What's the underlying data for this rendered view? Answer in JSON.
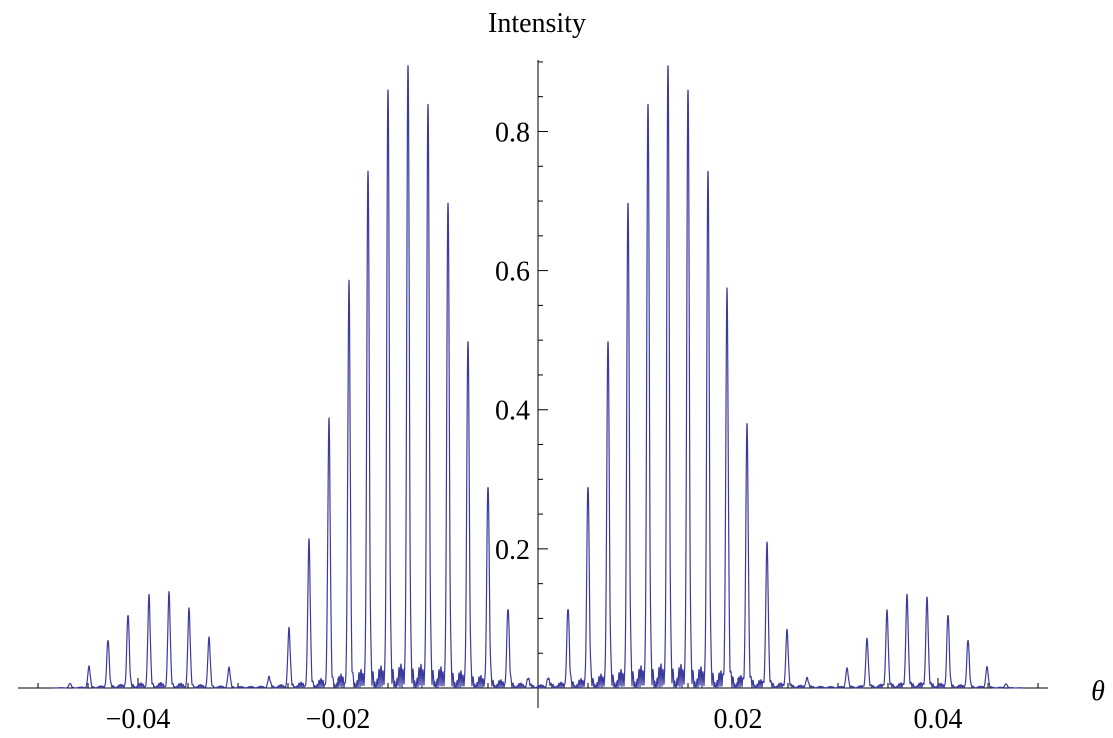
{
  "chart_data": {
    "type": "line",
    "title": "",
    "xlabel": "θ",
    "ylabel": "Intensity",
    "xlim": [
      -0.052,
      0.052
    ],
    "ylim": [
      0,
      0.92
    ],
    "grid": false,
    "x_ticks": [
      {
        "value": -0.04,
        "label": "−0.04"
      },
      {
        "value": -0.02,
        "label": "−0.02"
      },
      {
        "value": 0.02,
        "label": "0.02"
      },
      {
        "value": 0.04,
        "label": "0.04"
      }
    ],
    "y_ticks": [
      {
        "value": 0.2,
        "label": "0.2"
      },
      {
        "value": 0.4,
        "label": "0.4"
      },
      {
        "value": 0.6,
        "label": "0.6"
      },
      {
        "value": 0.8,
        "label": "0.8"
      }
    ],
    "series": [
      {
        "color": "#3b3b9e",
        "peaks": [
          {
            "x": -0.0468,
            "y": 0.006
          },
          {
            "x": -0.0449,
            "y": 0.03
          },
          {
            "x": -0.043,
            "y": 0.068
          },
          {
            "x": -0.041,
            "y": 0.104
          },
          {
            "x": -0.0389,
            "y": 0.128
          },
          {
            "x": -0.0369,
            "y": 0.132
          },
          {
            "x": -0.0349,
            "y": 0.11
          },
          {
            "x": -0.0329,
            "y": 0.07
          },
          {
            "x": -0.0309,
            "y": 0.028
          },
          {
            "x": -0.0269,
            "y": 0.014
          },
          {
            "x": -0.0249,
            "y": 0.082
          },
          {
            "x": -0.0229,
            "y": 0.206
          },
          {
            "x": -0.0209,
            "y": 0.375
          },
          {
            "x": -0.0189,
            "y": 0.567
          },
          {
            "x": -0.017,
            "y": 0.742
          },
          {
            "x": -0.015,
            "y": 0.859
          },
          {
            "x": -0.013,
            "y": 0.894
          },
          {
            "x": -0.011,
            "y": 0.838
          },
          {
            "x": -0.009,
            "y": 0.696
          },
          {
            "x": -0.007,
            "y": 0.497
          },
          {
            "x": -0.005,
            "y": 0.288
          },
          {
            "x": -0.003,
            "y": 0.112
          },
          {
            "x": -0.001,
            "y": 0.012
          },
          {
            "x": 0.001,
            "y": 0.012
          },
          {
            "x": 0.003,
            "y": 0.112
          },
          {
            "x": 0.005,
            "y": 0.288
          },
          {
            "x": 0.007,
            "y": 0.497
          },
          {
            "x": 0.009,
            "y": 0.696
          },
          {
            "x": 0.011,
            "y": 0.838
          },
          {
            "x": 0.013,
            "y": 0.894
          },
          {
            "x": 0.015,
            "y": 0.859
          },
          {
            "x": 0.017,
            "y": 0.742
          },
          {
            "x": 0.0189,
            "y": 0.567
          },
          {
            "x": 0.0209,
            "y": 0.375
          },
          {
            "x": 0.0229,
            "y": 0.206
          },
          {
            "x": 0.0249,
            "y": 0.082
          },
          {
            "x": 0.0269,
            "y": 0.014
          },
          {
            "x": 0.0309,
            "y": 0.028
          },
          {
            "x": 0.0329,
            "y": 0.07
          },
          {
            "x": 0.0349,
            "y": 0.11
          },
          {
            "x": 0.0369,
            "y": 0.132
          },
          {
            "x": 0.0389,
            "y": 0.128
          },
          {
            "x": 0.041,
            "y": 0.104
          },
          {
            "x": 0.043,
            "y": 0.068
          },
          {
            "x": 0.0449,
            "y": 0.03
          },
          {
            "x": 0.0468,
            "y": 0.006
          }
        ]
      }
    ]
  }
}
